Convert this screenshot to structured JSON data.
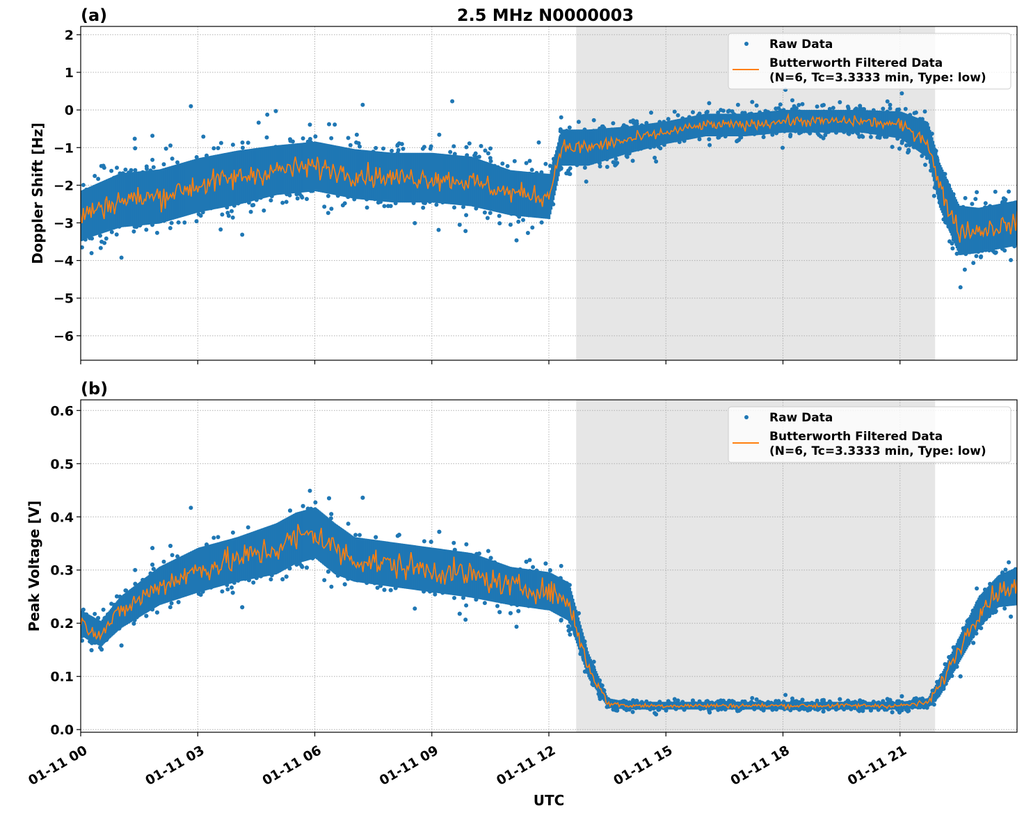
{
  "chart_data": [
    {
      "type": "scatter",
      "panel_label": "(a)",
      "title": "2.5 MHz N0000003",
      "xlabel": "",
      "ylabel": "Doppler Shift [Hz]",
      "xlim_hours": [
        0,
        24
      ],
      "ylim": [
        -6.65,
        2.22
      ],
      "yticks": [
        2,
        1,
        0,
        -1,
        -2,
        -3,
        -4,
        -5,
        -6
      ],
      "ytick_labels": [
        "2",
        "1",
        "0",
        "−1",
        "−2",
        "−3",
        "−4",
        "−5",
        "−6"
      ],
      "grid": true,
      "shaded_span_hours": [
        12.7,
        21.9
      ],
      "legend": {
        "placement": "top-right",
        "entries": [
          "Raw Data",
          "Butterworth Filtered Data",
          "(N=6, Tc=3.3333 min, Type: low)"
        ]
      },
      "series": [
        {
          "name": "Raw Data",
          "color": "#1f77b4",
          "kind": "points",
          "trend_hours": [
            0,
            1,
            2,
            3,
            4,
            5,
            6,
            7,
            8,
            9,
            10,
            11,
            12,
            12.3,
            13,
            14,
            15,
            16,
            17,
            18,
            19,
            20,
            21,
            21.7,
            22,
            22.5,
            23,
            24
          ],
          "trend_values": [
            -2.8,
            -2.4,
            -2.3,
            -2.0,
            -1.8,
            -1.6,
            -1.5,
            -1.7,
            -1.8,
            -1.8,
            -1.9,
            -2.2,
            -2.3,
            -1.0,
            -1.0,
            -0.8,
            -0.6,
            -0.4,
            -0.4,
            -0.3,
            -0.3,
            -0.3,
            -0.4,
            -0.8,
            -2.0,
            -3.2,
            -3.2,
            -3.0
          ],
          "spread_values": [
            1.1,
            1.2,
            1.2,
            1.2,
            1.2,
            1.1,
            1.1,
            1.1,
            1.1,
            1.1,
            1.1,
            1.0,
            1.0,
            0.8,
            0.8,
            0.6,
            0.5,
            0.5,
            0.5,
            0.5,
            0.5,
            0.5,
            0.6,
            0.8,
            1.0,
            1.1,
            1.0,
            1.0
          ]
        },
        {
          "name": "Butterworth Filtered Data",
          "color": "#ff7f0e",
          "kind": "line",
          "wiggle": 0.35
        }
      ]
    },
    {
      "type": "scatter",
      "panel_label": "(b)",
      "xlabel": "UTC",
      "ylabel": "Peak Voltage [V]",
      "xlim_hours": [
        0,
        24
      ],
      "ylim": [
        -0.005,
        0.62
      ],
      "yticks": [
        0.0,
        0.1,
        0.2,
        0.3,
        0.4,
        0.5,
        0.6
      ],
      "ytick_labels": [
        "0.0",
        "0.1",
        "0.2",
        "0.3",
        "0.4",
        "0.5",
        "0.6"
      ],
      "xticks_hours": [
        0,
        3,
        6,
        9,
        12,
        15,
        18,
        21
      ],
      "xtick_labels": [
        "01-11 00",
        "01-11 03",
        "01-11 06",
        "01-11 09",
        "01-11 12",
        "01-11 15",
        "01-11 18",
        "01-11 21"
      ],
      "grid": true,
      "shaded_span_hours": [
        12.7,
        21.9
      ],
      "legend": {
        "placement": "top-right",
        "entries": [
          "Raw Data",
          "Butterworth Filtered Data",
          "(N=6, Tc=3.3333 min, Type: low)"
        ]
      },
      "series": [
        {
          "name": "Raw Data",
          "color": "#1f77b4",
          "kind": "points",
          "trend_hours": [
            0,
            0.5,
            1,
            2,
            3,
            4,
            5,
            5.5,
            6,
            6.5,
            7,
            8,
            9,
            10,
            11,
            12,
            12.5,
            13,
            13.5,
            14,
            18,
            21,
            21.7,
            22,
            22.5,
            23,
            23.5,
            24
          ],
          "trend_values": [
            0.2,
            0.18,
            0.22,
            0.27,
            0.3,
            0.32,
            0.34,
            0.36,
            0.37,
            0.34,
            0.32,
            0.31,
            0.3,
            0.29,
            0.27,
            0.26,
            0.24,
            0.12,
            0.05,
            0.045,
            0.045,
            0.045,
            0.05,
            0.08,
            0.15,
            0.22,
            0.26,
            0.27
          ],
          "spread_values": [
            0.04,
            0.04,
            0.05,
            0.06,
            0.07,
            0.07,
            0.08,
            0.08,
            0.08,
            0.08,
            0.07,
            0.07,
            0.07,
            0.07,
            0.06,
            0.06,
            0.06,
            0.04,
            0.015,
            0.012,
            0.012,
            0.012,
            0.015,
            0.03,
            0.04,
            0.05,
            0.05,
            0.06
          ]
        },
        {
          "name": "Butterworth Filtered Data",
          "color": "#ff7f0e",
          "kind": "line",
          "wiggle": 0.03
        }
      ]
    }
  ]
}
